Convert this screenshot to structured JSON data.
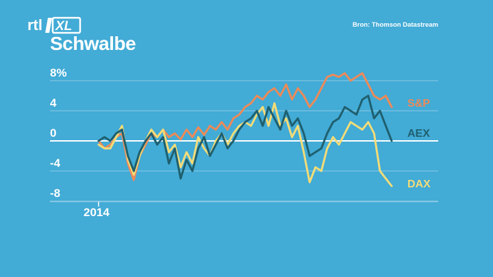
{
  "header": {
    "logo_text": "rtl XL",
    "source": "Bron: Thomson Datastream",
    "title": "Schwalbe"
  },
  "colors": {
    "background": "#42abd6",
    "sp": "#ee8a57",
    "aex": "#1f5f6e",
    "dax": "#f3dc78"
  },
  "chart_data": {
    "type": "line",
    "title": "Schwalbe",
    "xlabel": "",
    "ylabel": "",
    "ylim": [
      -8,
      9
    ],
    "yticks": [
      {
        "value": 8,
        "label": "8%"
      },
      {
        "value": 4,
        "label": "4"
      },
      {
        "value": 0,
        "label": "0"
      },
      {
        "value": -4,
        "label": "-4"
      },
      {
        "value": -8,
        "label": "-8"
      }
    ],
    "xlim": [
      0,
      100
    ],
    "xtick_labels": [
      {
        "x": 0,
        "label": "2014"
      }
    ],
    "grid": true,
    "series": [
      {
        "name": "S&P",
        "color": "#ee8a57",
        "x": [
          0,
          2,
          4,
          6,
          8,
          10,
          12,
          14,
          16,
          18,
          20,
          22,
          24,
          26,
          28,
          30,
          32,
          34,
          36,
          38,
          40,
          42,
          44,
          46,
          48,
          50,
          52,
          54,
          56,
          58,
          60,
          62,
          64,
          66,
          68,
          70,
          72,
          74,
          76,
          78,
          80,
          82,
          84,
          86,
          88,
          90,
          92,
          94,
          96,
          98,
          100
        ],
        "values": [
          0,
          -1,
          -0.5,
          0.5,
          1,
          -3,
          -5.2,
          -2,
          -0.5,
          1,
          0.5,
          1.5,
          0.5,
          1,
          0.2,
          1.5,
          0.5,
          1.8,
          0.8,
          2,
          1.5,
          2.5,
          1.5,
          3,
          3.5,
          4.5,
          5,
          6,
          5.5,
          6.5,
          7,
          6,
          7.5,
          5.5,
          7,
          6,
          4.5,
          5.5,
          7,
          8.5,
          8.8,
          8.5,
          9,
          8,
          8.5,
          9,
          7.5,
          6,
          5.5,
          6,
          4.5
        ]
      },
      {
        "name": "AEX",
        "color": "#1f5f6e",
        "x": [
          0,
          2,
          4,
          6,
          8,
          10,
          12,
          14,
          16,
          18,
          20,
          22,
          24,
          26,
          28,
          30,
          32,
          34,
          36,
          38,
          40,
          42,
          44,
          46,
          48,
          50,
          52,
          54,
          56,
          58,
          60,
          62,
          64,
          66,
          68,
          70,
          72,
          74,
          76,
          78,
          80,
          82,
          84,
          86,
          88,
          90,
          92,
          94,
          96,
          98,
          100
        ],
        "values": [
          0,
          0.5,
          0,
          1,
          1.5,
          -2,
          -4,
          -1.5,
          0,
          1,
          -0.5,
          0.5,
          -3,
          -1,
          -5,
          -2.5,
          -4,
          -1,
          0.5,
          -2,
          -0.5,
          1,
          -1,
          0,
          1.5,
          2.5,
          3,
          4,
          2,
          4.5,
          3,
          1.5,
          4,
          2,
          3,
          1,
          -2,
          -1.5,
          -1,
          1,
          2.5,
          3,
          4.5,
          4,
          3.5,
          5.5,
          6,
          3,
          4,
          2,
          0
        ]
      },
      {
        "name": "DAX",
        "color": "#f3dc78",
        "x": [
          0,
          2,
          4,
          6,
          8,
          10,
          12,
          14,
          16,
          18,
          20,
          22,
          24,
          26,
          28,
          30,
          32,
          34,
          36,
          38,
          40,
          42,
          44,
          46,
          48,
          50,
          52,
          54,
          56,
          58,
          60,
          62,
          64,
          66,
          68,
          70,
          72,
          74,
          76,
          78,
          80,
          82,
          84,
          86,
          88,
          90,
          92,
          94,
          96,
          98,
          100
        ],
        "values": [
          -0.5,
          -1,
          -1,
          0.5,
          2,
          -2.5,
          -4.5,
          -2,
          0,
          1.5,
          0.5,
          1.5,
          -1.5,
          -0.5,
          -3.5,
          -1.5,
          -3,
          0.5,
          -1,
          -2,
          0,
          1,
          -0.5,
          1,
          2,
          2.5,
          2,
          3.5,
          4.5,
          2,
          5,
          2,
          3,
          0.5,
          2,
          -1.5,
          -5.5,
          -3.5,
          -4,
          -1,
          0.5,
          -0.5,
          1,
          2.5,
          2,
          1.5,
          2.5,
          1,
          -4,
          -5,
          -6
        ]
      }
    ]
  }
}
